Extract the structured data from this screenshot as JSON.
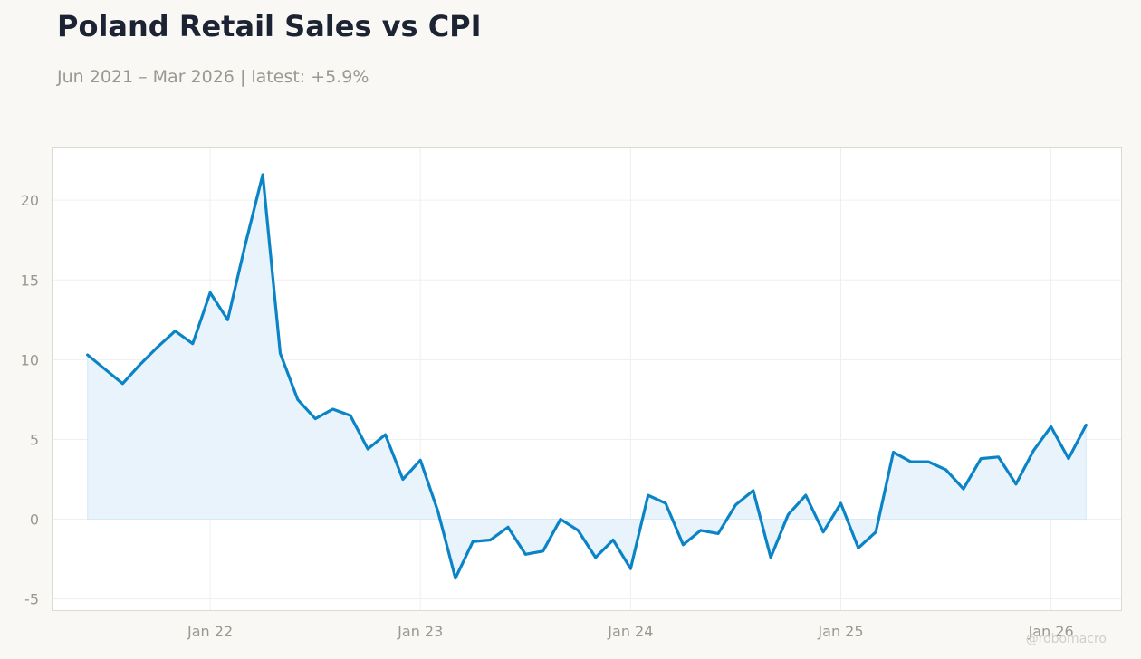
{
  "title": "Poland Retail Sales vs CPI",
  "subtitle": "Jun 2021 – Mar 2026 | latest: +5.9%",
  "watermark": "@robomacro",
  "colors": {
    "line": "#0a84c6",
    "fill": "#e8f3fb",
    "plot_background": "#ffffff",
    "page_background": "#f9f8f5",
    "grid": "#efefef",
    "text_muted": "#999891",
    "title": "#1c2333"
  },
  "chart_data": {
    "type": "area",
    "title": "Poland Retail Sales vs CPI",
    "subtitle": "Jun 2021 – Mar 2026 | latest: +5.9%",
    "xlabel": "",
    "ylabel": "",
    "grid": true,
    "legend": "none",
    "ylim": [
      -5.7,
      23.3
    ],
    "xlim": [
      "2021-04",
      "2026-05"
    ],
    "x_ticks": [
      "2022-01",
      "2023-01",
      "2024-01",
      "2025-01",
      "2026-01"
    ],
    "x_tick_labels": [
      "Jan 22",
      "Jan 23",
      "Jan 24",
      "Jan 25",
      "Jan 26"
    ],
    "y_ticks": [
      -5,
      0,
      5,
      10,
      15,
      20
    ],
    "y_tick_labels": [
      "-5",
      "0",
      "5",
      "10",
      "15",
      "20"
    ],
    "x": [
      "2021-06",
      "2021-07",
      "2021-08",
      "2021-09",
      "2021-10",
      "2021-11",
      "2021-12",
      "2022-01",
      "2022-02",
      "2022-03",
      "2022-04",
      "2022-05",
      "2022-06",
      "2022-07",
      "2022-08",
      "2022-09",
      "2022-10",
      "2022-11",
      "2022-12",
      "2023-01",
      "2023-02",
      "2023-03",
      "2023-04",
      "2023-05",
      "2023-06",
      "2023-07",
      "2023-08",
      "2023-09",
      "2023-10",
      "2023-11",
      "2023-12",
      "2024-01",
      "2024-02",
      "2024-03",
      "2024-04",
      "2024-05",
      "2024-06",
      "2024-07",
      "2024-08",
      "2024-09",
      "2024-10",
      "2024-11",
      "2024-12",
      "2025-01",
      "2025-02",
      "2025-03",
      "2025-04",
      "2025-05",
      "2025-06",
      "2025-07",
      "2025-08",
      "2025-09",
      "2025-10",
      "2025-11",
      "2025-12",
      "2026-01",
      "2026-02",
      "2026-03"
    ],
    "values": [
      10.3,
      9.4,
      8.5,
      9.7,
      10.8,
      11.8,
      11.0,
      14.2,
      12.5,
      17.2,
      21.6,
      10.4,
      7.5,
      6.3,
      6.9,
      6.5,
      4.4,
      5.3,
      2.5,
      3.7,
      0.5,
      -3.7,
      -1.4,
      -1.3,
      -0.5,
      -2.2,
      -2.0,
      0.0,
      -0.7,
      -2.4,
      -1.3,
      -3.1,
      1.5,
      1.0,
      -1.6,
      -0.7,
      -0.9,
      0.9,
      1.8,
      -2.4,
      0.3,
      1.5,
      -0.8,
      1.0,
      -1.8,
      -0.8,
      4.2,
      3.6,
      3.6,
      3.1,
      1.9,
      3.8,
      3.9,
      2.2,
      4.3,
      5.8,
      3.8,
      5.9
    ]
  }
}
